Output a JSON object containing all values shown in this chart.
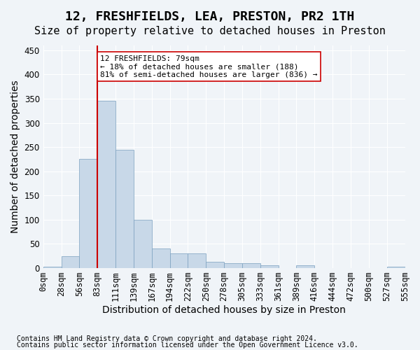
{
  "title": "12, FRESHFIELDS, LEA, PRESTON, PR2 1TH",
  "subtitle": "Size of property relative to detached houses in Preston",
  "xlabel": "Distribution of detached houses by size in Preston",
  "ylabel": "Number of detached properties",
  "footer_line1": "Contains HM Land Registry data © Crown copyright and database right 2024.",
  "footer_line2": "Contains public sector information licensed under the Open Government Licence v3.0.",
  "bin_labels": [
    "0sqm",
    "28sqm",
    "56sqm",
    "83sqm",
    "111sqm",
    "139sqm",
    "167sqm",
    "194sqm",
    "222sqm",
    "250sqm",
    "278sqm",
    "305sqm",
    "333sqm",
    "361sqm",
    "389sqm",
    "416sqm",
    "444sqm",
    "472sqm",
    "500sqm",
    "527sqm",
    "555sqm"
  ],
  "bar_values": [
    3,
    25,
    225,
    345,
    245,
    100,
    40,
    30,
    30,
    13,
    10,
    10,
    5,
    0,
    5,
    0,
    0,
    0,
    0,
    3
  ],
  "bar_color": "#c8d8e8",
  "bar_edge_color": "#7aa0bf",
  "vline_x": 3.0,
  "vline_color": "#cc0000",
  "annotation_text": "12 FRESHFIELDS: 79sqm\n← 18% of detached houses are smaller (188)\n81% of semi-detached houses are larger (836) →",
  "annotation_box_color": "white",
  "annotation_box_edge": "#cc0000",
  "ylim": [
    0,
    460
  ],
  "yticks": [
    0,
    50,
    100,
    150,
    200,
    250,
    300,
    350,
    400,
    450
  ],
  "background_color": "#f0f4f8",
  "grid_color": "#ffffff",
  "title_fontsize": 13,
  "subtitle_fontsize": 11,
  "axis_fontsize": 10,
  "tick_fontsize": 8.5
}
